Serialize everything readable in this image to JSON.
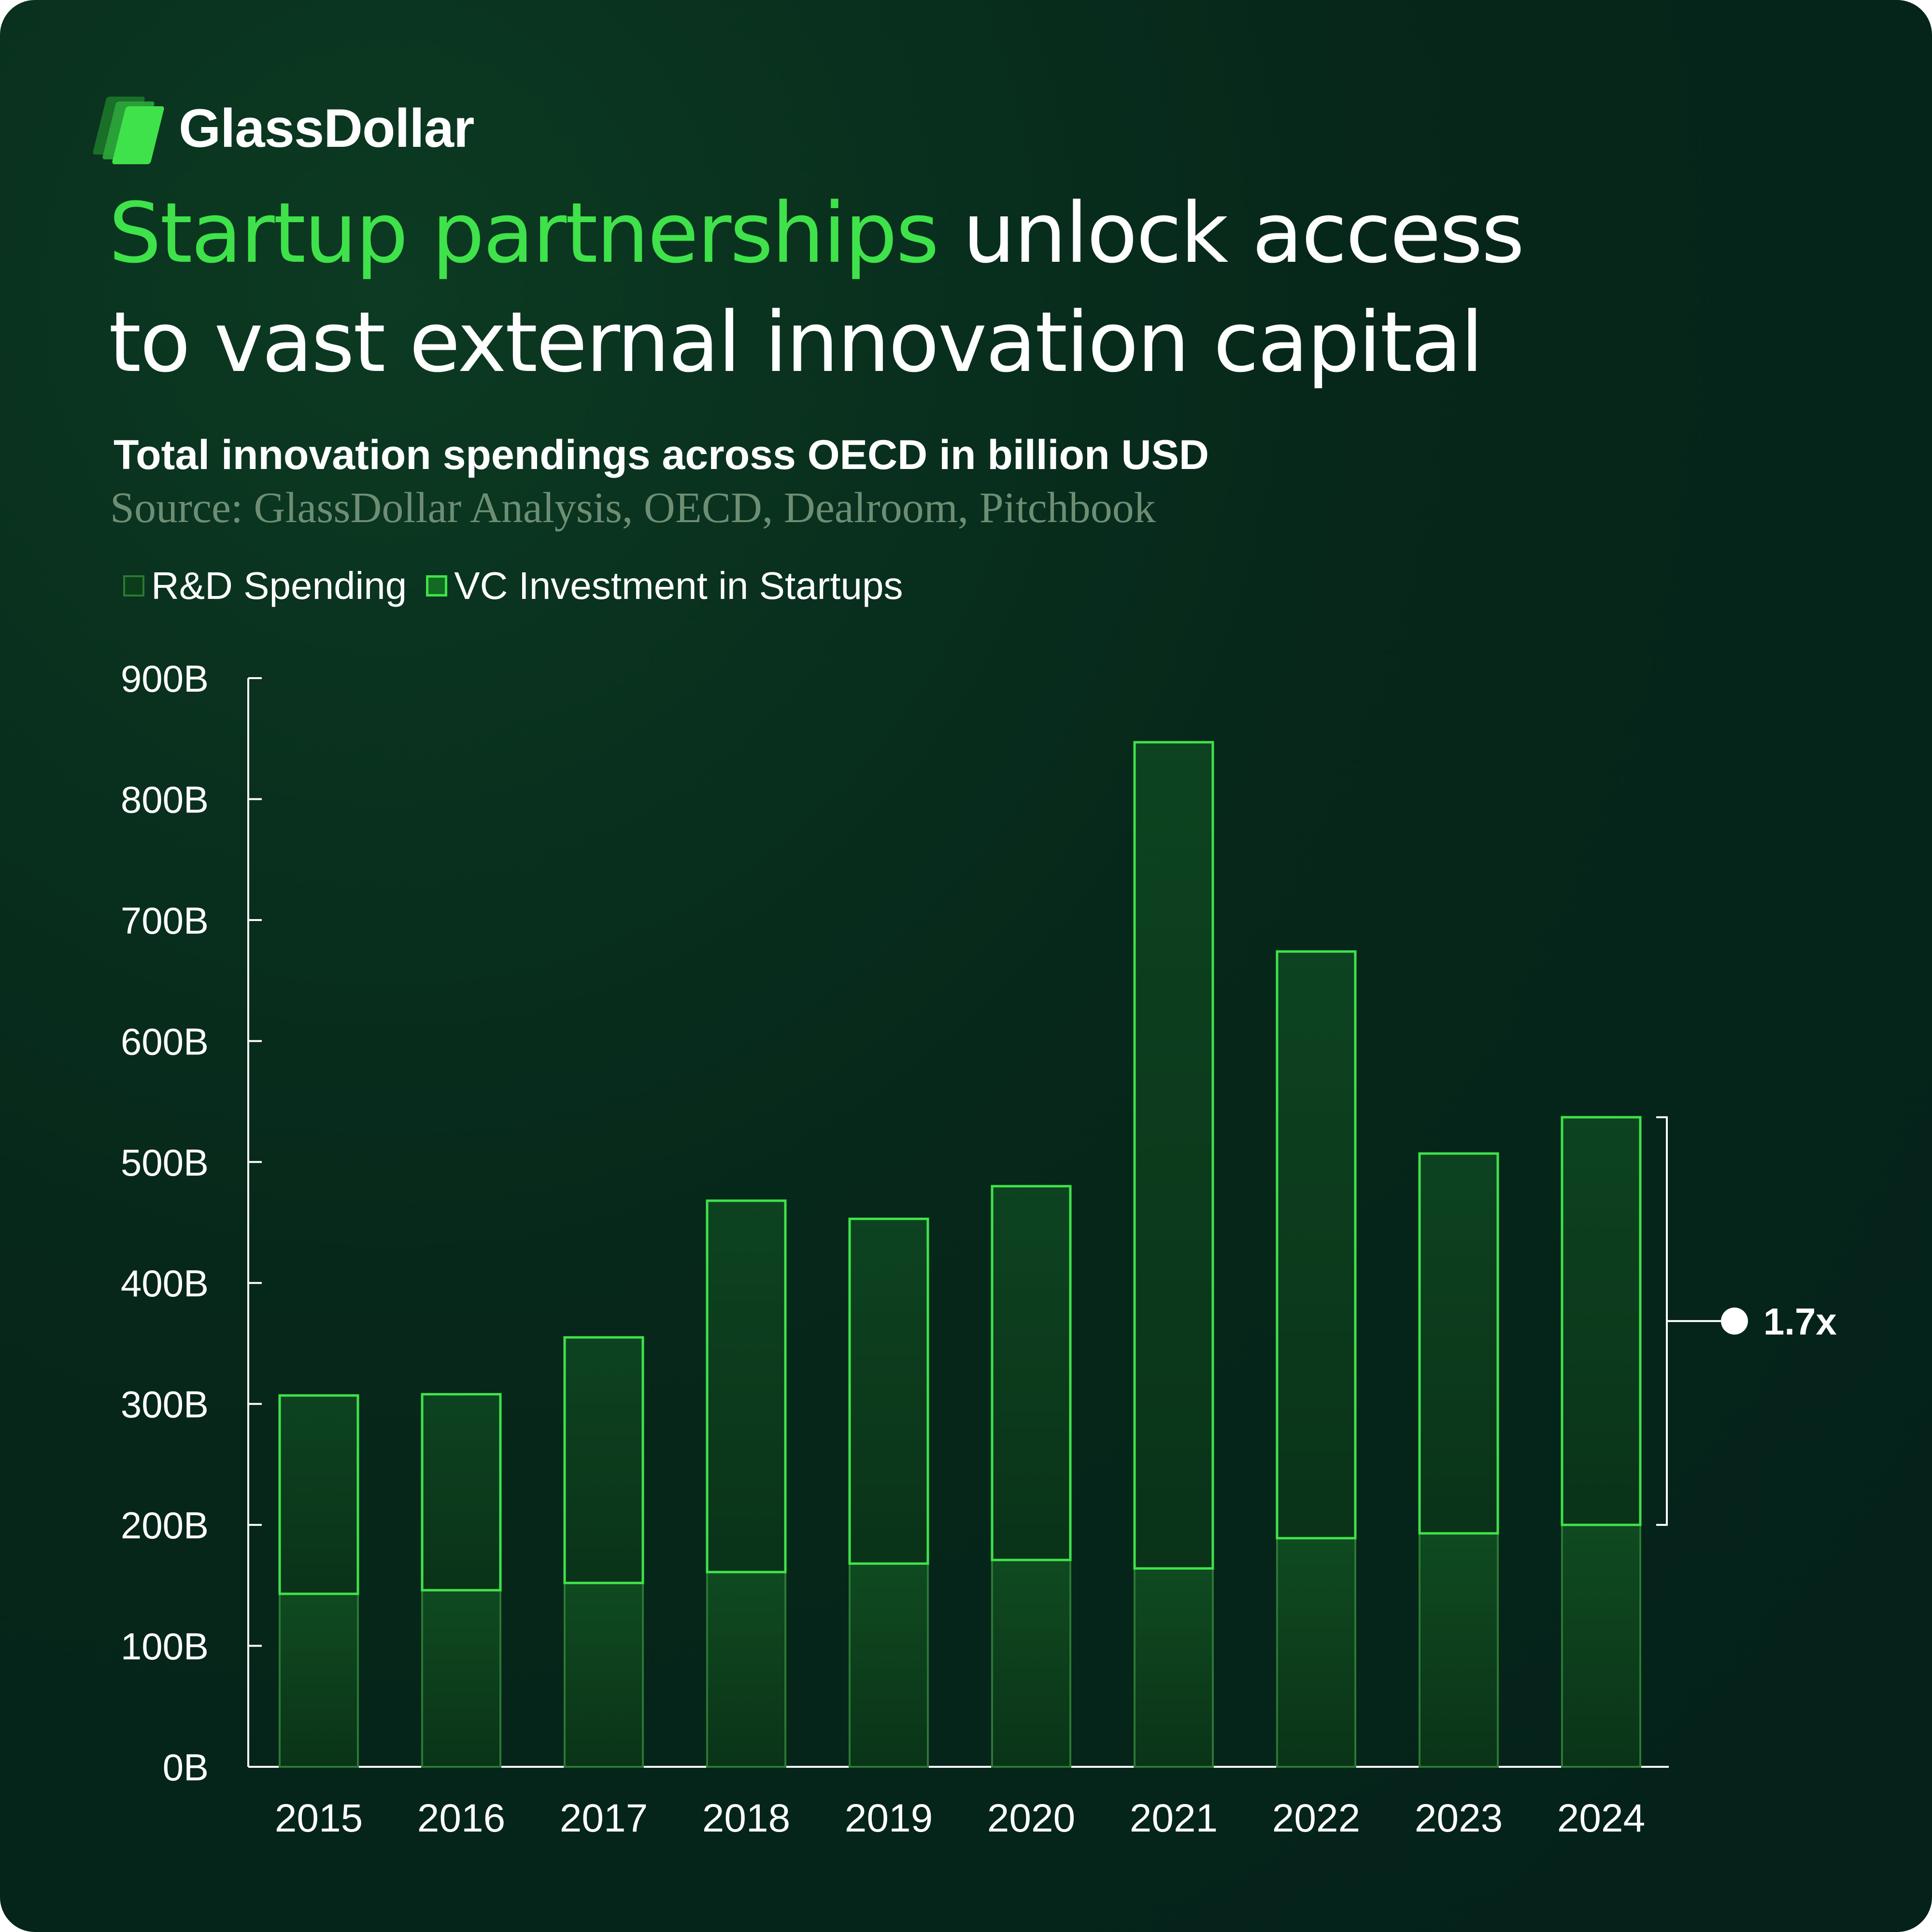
{
  "brand": {
    "name": "GlassDollar",
    "logo_icon": "glass-layers-logo-icon"
  },
  "headline": {
    "highlight": "Startup partnerships",
    "rest_line1": " unlock access",
    "line2": "to vast external innovation capital"
  },
  "colors": {
    "background": "#04211a",
    "accent": "#3fe24a",
    "rd_fill": "#0c3d1b",
    "rd_stroke": "#2a7a32",
    "vc_fill": "#0b3a1a",
    "vc_stroke": "#3fe24a",
    "text": "#ffffff",
    "source_text": "#6e8e74"
  },
  "chart_data": {
    "type": "bar",
    "stacked": true,
    "title": "Total innovation spendings across OECD in billion USD",
    "subtitle": "Source: GlassDollar Analysis, OECD, Dealroom, Pitchbook",
    "categories": [
      "2015",
      "2016",
      "2017",
      "2018",
      "2019",
      "2020",
      "2021",
      "2022",
      "2023",
      "2024"
    ],
    "series": [
      {
        "name": "R&D Spending",
        "values": [
          143,
          146,
          152,
          161,
          168,
          171,
          164,
          189,
          193,
          200
        ]
      },
      {
        "name": "VC Investment in Startups",
        "values": [
          164,
          162,
          203,
          307,
          285,
          309,
          683,
          485,
          314,
          337
        ]
      }
    ],
    "y_ticks": [
      "0B",
      "100B",
      "200B",
      "300B",
      "400B",
      "500B",
      "600B",
      "700B",
      "800B",
      "900B"
    ],
    "ylim": [
      0,
      900
    ],
    "legend_position": "top-left",
    "grid": false,
    "annotation": {
      "text": "1.7x",
      "from": 200,
      "to": 537,
      "category": "2024"
    }
  }
}
